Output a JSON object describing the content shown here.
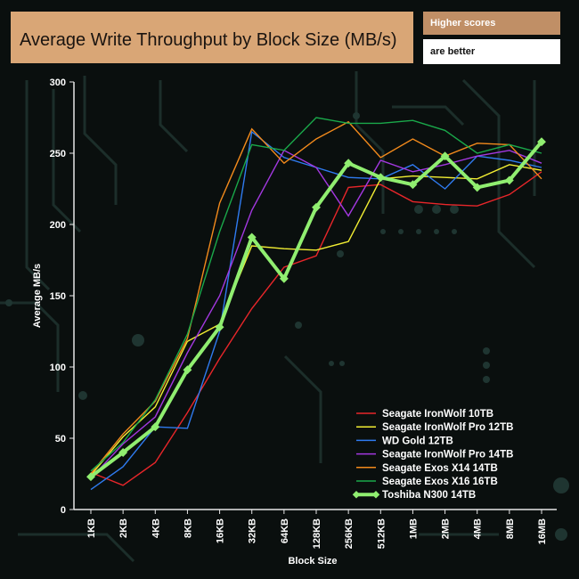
{
  "header": {
    "title": "Average Write Throughput by Block Size  (MB/s)",
    "note_top": "Higher scores",
    "note_bottom": "are better"
  },
  "chart_data": {
    "type": "line",
    "title": "Average Write Throughput by Block Size  (MB/s)",
    "xlabel": "Block Size",
    "ylabel": "Average MB/s",
    "ylim": [
      0,
      300
    ],
    "yticks": [
      0,
      50,
      100,
      150,
      200,
      250,
      300
    ],
    "grid": false,
    "legend_position": "bottom-right",
    "categories": [
      "1KB",
      "2KB",
      "4KB",
      "8KB",
      "16KB",
      "32KB",
      "64KB",
      "128KB",
      "256KB",
      "512KB",
      "1MB",
      "2MB",
      "4MB",
      "8MB",
      "16MB"
    ],
    "series": [
      {
        "name": "Seagate IronWolf 10TB",
        "color": "#e8262a",
        "values": [
          26,
          17,
          33,
          68,
          106,
          141,
          170,
          178,
          226,
          228,
          216,
          214,
          213,
          221,
          237
        ]
      },
      {
        "name": "Seagate IronWolf Pro 12TB",
        "color": "#f2ee33",
        "values": [
          24,
          51,
          72,
          118,
          130,
          185,
          183,
          182,
          188,
          232,
          234,
          233,
          232,
          242,
          238
        ]
      },
      {
        "name": "WD Gold 12TB",
        "color": "#2f7bf0",
        "values": [
          14,
          30,
          58,
          57,
          125,
          265,
          247,
          240,
          233,
          232,
          242,
          225,
          248,
          245,
          240
        ]
      },
      {
        "name": "Seagate IronWolf Pro 14TB",
        "color": "#a338e0",
        "values": [
          22,
          46,
          65,
          110,
          150,
          210,
          252,
          240,
          206,
          245,
          237,
          242,
          248,
          252,
          243
        ]
      },
      {
        "name": "Seagate Exos X14 14TB",
        "color": "#f28a1c",
        "values": [
          25,
          53,
          76,
          120,
          215,
          267,
          243,
          260,
          272,
          247,
          260,
          248,
          257,
          256,
          232
        ]
      },
      {
        "name": "Seagate Exos X16 16TB",
        "color": "#1aa84a",
        "values": [
          27,
          47,
          77,
          123,
          195,
          256,
          252,
          275,
          271,
          271,
          273,
          266,
          250,
          256,
          250
        ]
      },
      {
        "name": "Toshiba N300 14TB",
        "color": "#90ee70",
        "values": [
          23,
          40,
          58,
          98,
          128,
          191,
          162,
          212,
          243,
          233,
          228,
          248,
          226,
          231,
          258
        ]
      }
    ]
  }
}
